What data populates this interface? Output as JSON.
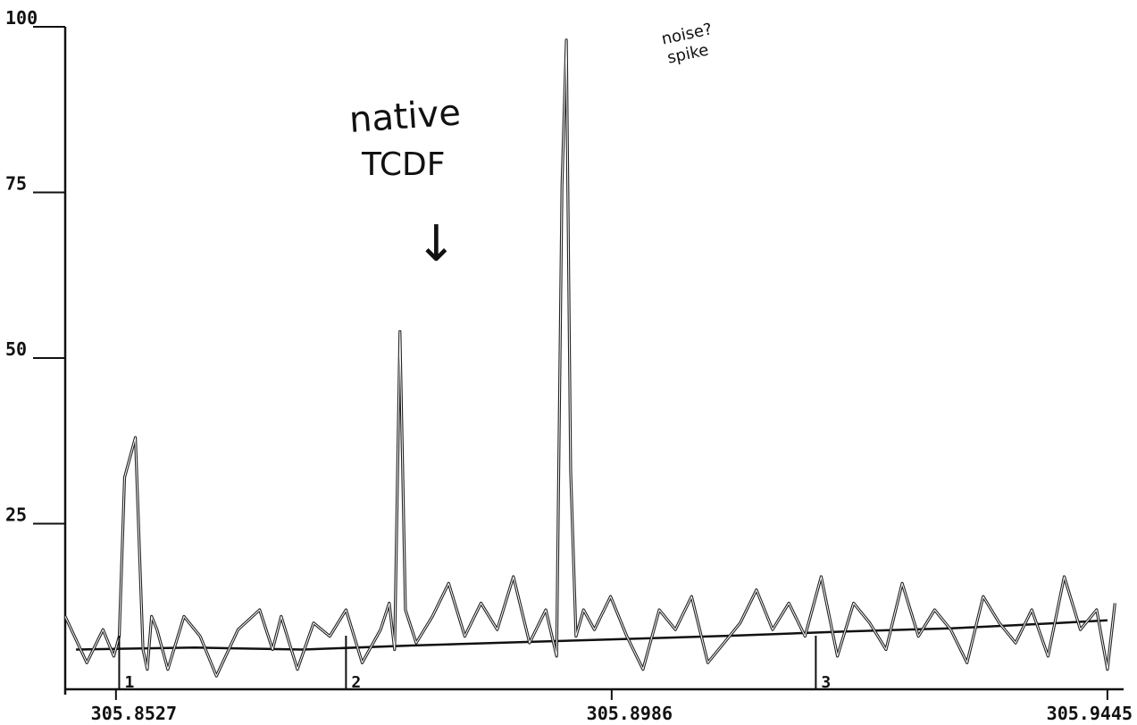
{
  "chart_data": {
    "type": "line",
    "xlabel": "",
    "ylabel": "",
    "xlim": [
      305.848,
      305.946
    ],
    "ylim": [
      0,
      100
    ],
    "x_ticks": [
      {
        "value": 305.8527,
        "label": "305.8527"
      },
      {
        "value": 305.8986,
        "label": "305.8986"
      },
      {
        "value": 305.9445,
        "label": "305.9445"
      }
    ],
    "y_ticks": [
      {
        "value": 25,
        "label": "25"
      },
      {
        "value": 50,
        "label": "50"
      },
      {
        "value": 75,
        "label": "75"
      },
      {
        "value": 100,
        "label": "100"
      }
    ],
    "series": [
      {
        "x": [
          305.848,
          305.85,
          305.8515,
          305.8525,
          305.853,
          305.8535,
          305.8545,
          305.8552,
          305.8556,
          305.856,
          305.8565,
          305.8575,
          305.859,
          305.8605,
          305.862,
          305.864,
          305.866,
          305.8672,
          305.868,
          305.8695,
          305.871,
          305.8725,
          305.874,
          305.8755,
          305.8772,
          305.878,
          305.8785,
          305.879,
          305.8795,
          305.8805,
          305.882,
          305.8835,
          305.885,
          305.8865,
          305.888,
          305.8895,
          305.891,
          305.8925,
          305.8935,
          305.894,
          305.8944,
          305.8948,
          305.8953,
          305.896,
          305.897,
          305.8985,
          305.9,
          305.9015,
          305.903,
          305.9045,
          305.906,
          305.9075,
          305.909,
          305.9105,
          305.912,
          305.9135,
          305.915,
          305.9165,
          305.918,
          305.9195,
          305.921,
          305.9225,
          305.924,
          305.9255,
          305.927,
          305.9285,
          305.93,
          305.9315,
          305.933,
          305.9345,
          305.936,
          305.9375,
          305.939,
          305.9405,
          305.942,
          305.9435,
          305.9445,
          305.9452
        ],
        "y": [
          11,
          4,
          9,
          5,
          8,
          32,
          38,
          6,
          3,
          11,
          9,
          3,
          11,
          8,
          2,
          9,
          12,
          6,
          11,
          3,
          10,
          8,
          12,
          4,
          9,
          13,
          6,
          54,
          12,
          7,
          11,
          16,
          8,
          13,
          9,
          17,
          7,
          12,
          5,
          76,
          98,
          33,
          8,
          12,
          9,
          14,
          8,
          3,
          12,
          9,
          14,
          4,
          7,
          10,
          15,
          9,
          13,
          8,
          17,
          5,
          13,
          10,
          6,
          16,
          8,
          12,
          9,
          4,
          14,
          10,
          7,
          12,
          5,
          17,
          9,
          12,
          3,
          13
        ]
      }
    ],
    "baseline": {
      "x": [
        305.849,
        305.86,
        305.87,
        305.88,
        305.89,
        305.9,
        305.91,
        305.92,
        305.93,
        305.94,
        305.9445
      ],
      "y": [
        6,
        6.3,
        6,
        6.6,
        7.1,
        7.6,
        8.1,
        8.7,
        9.2,
        10,
        10.4
      ]
    },
    "segment_markers": [
      {
        "x": 305.853,
        "label": "1"
      },
      {
        "x": 305.874,
        "label": "2"
      },
      {
        "x": 305.9175,
        "label": "3"
      }
    ],
    "annotations": {
      "compound_line1": "native",
      "compound_line2": "TCDF",
      "spike_line1": "noise?",
      "spike_line2": "spike",
      "arrow": "↓"
    }
  }
}
